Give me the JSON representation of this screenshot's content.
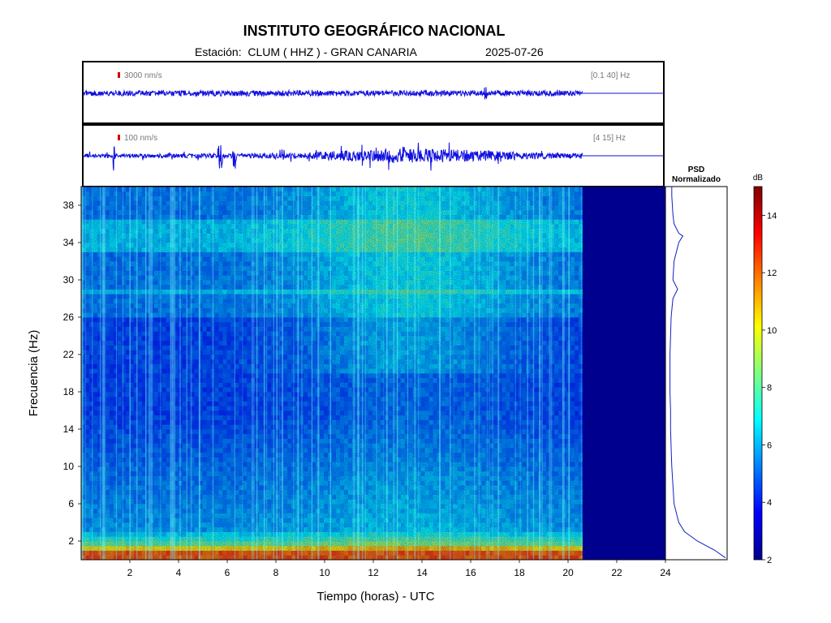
{
  "header": {
    "title": "INSTITUTO GEOGRÁFICO NACIONAL",
    "station_line": "Estación:  CLUM ( HHZ ) - GRAN CANARIA",
    "date": "2025-07-26"
  },
  "chart_data": [
    {
      "type": "line",
      "panel": "waveform-broadband",
      "scale_label": "3000 nm/s",
      "band_label": "[0.1 40] Hz",
      "data_end_hour": 20.6,
      "x_range": [
        0,
        24
      ]
    },
    {
      "type": "line",
      "panel": "waveform-filtered",
      "scale_label": "100 nm/s",
      "band_label": "[4 15] Hz",
      "data_end_hour": 20.6,
      "x_range": [
        0,
        24
      ]
    },
    {
      "type": "heatmap",
      "panel": "spectrogram",
      "xlabel": "Tiempo (horas) - UTC",
      "ylabel": "Frecuencia  (Hz)",
      "xlim": [
        0,
        24
      ],
      "ylim": [
        0,
        40
      ],
      "x_ticks": [
        2,
        4,
        6,
        8,
        10,
        12,
        14,
        16,
        18,
        20,
        22,
        24
      ],
      "y_ticks": [
        2,
        6,
        10,
        14,
        18,
        22,
        26,
        30,
        34,
        38
      ],
      "data_end_hour": 20.6,
      "colorscale": [
        "#00008f",
        "#0000ff",
        "#0080ff",
        "#00ffff",
        "#80ff80",
        "#ffff00",
        "#ff8000",
        "#ff0000",
        "#800000"
      ]
    },
    {
      "type": "line",
      "panel": "psd",
      "title_line1": "PSD",
      "title_line2": "Normalizado",
      "freq": [
        0.2,
        1,
        2,
        3,
        4,
        6,
        8,
        10,
        12,
        14,
        16,
        18,
        20,
        22,
        24,
        26,
        28,
        29,
        30,
        32,
        34,
        34.7,
        35,
        36,
        37,
        38,
        39,
        40
      ],
      "level": [
        1.0,
        0.82,
        0.52,
        0.3,
        0.2,
        0.12,
        0.1,
        0.08,
        0.07,
        0.06,
        0.06,
        0.05,
        0.05,
        0.05,
        0.06,
        0.07,
        0.1,
        0.18,
        0.1,
        0.12,
        0.2,
        0.27,
        0.2,
        0.12,
        0.1,
        0.09,
        0.08,
        0.08
      ]
    },
    {
      "type": "heatmap",
      "panel": "colorbar",
      "label": "dB",
      "range": [
        2,
        15
      ],
      "ticks": [
        2,
        4,
        6,
        8,
        10,
        12,
        14
      ]
    }
  ]
}
